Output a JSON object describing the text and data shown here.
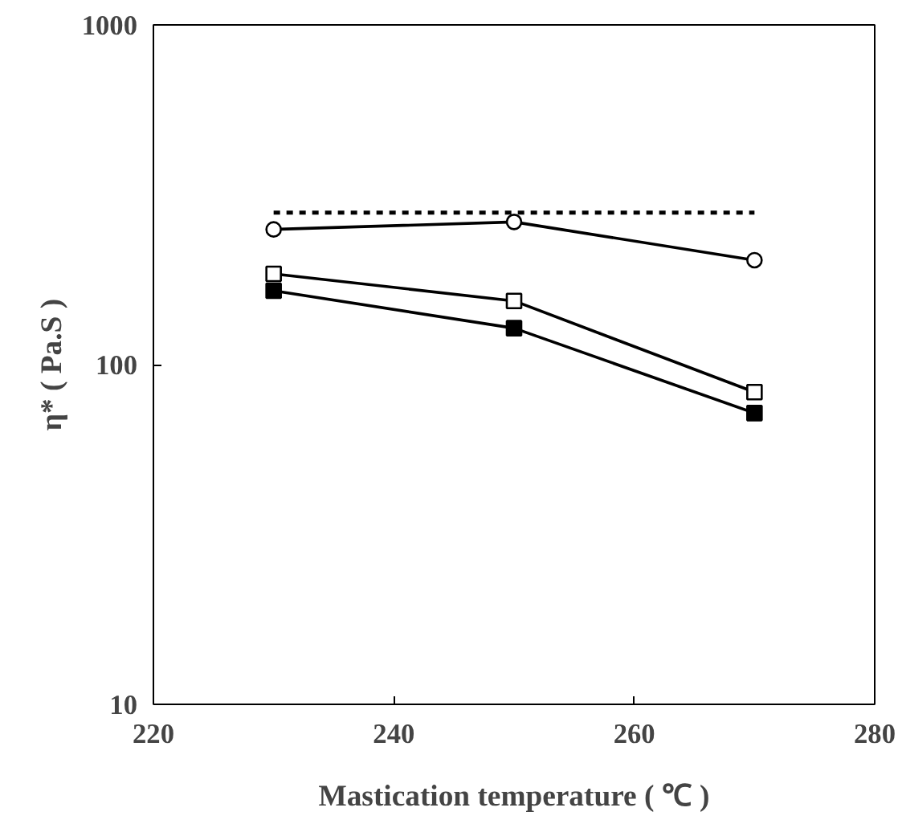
{
  "chart_data": {
    "type": "line",
    "xlabel": "Mastication temperature ( ℃ )",
    "ylabel": "η* ( Pa.S )",
    "log": "y",
    "xlim": [
      220,
      280
    ],
    "ylim": [
      10,
      1000
    ],
    "xticks": [
      220,
      240,
      260,
      280
    ],
    "yticks": [
      10,
      100,
      1000
    ],
    "grid": false,
    "series": [
      {
        "x": [
          230,
          270
        ],
        "values": [
          280,
          280
        ],
        "color": "#000000",
        "marker": "none",
        "line_style": "dotted"
      },
      {
        "x": [
          230,
          250,
          270
        ],
        "values": [
          250,
          263,
          203
        ],
        "color": "#000000",
        "colors": [
          "#ffffff",
          "#ffffff",
          "#ffffff"
        ],
        "marker": "circle"
      },
      {
        "x": [
          230,
          250,
          270
        ],
        "values": [
          185,
          154,
          83
        ],
        "color": "#000000",
        "colors": [
          "#ffffff",
          "#ffffff",
          "#ffffff"
        ],
        "marker": "square"
      },
      {
        "x": [
          230,
          250,
          270
        ],
        "values": [
          165,
          128,
          72
        ],
        "color": "#000000",
        "marker": "square"
      }
    ]
  }
}
